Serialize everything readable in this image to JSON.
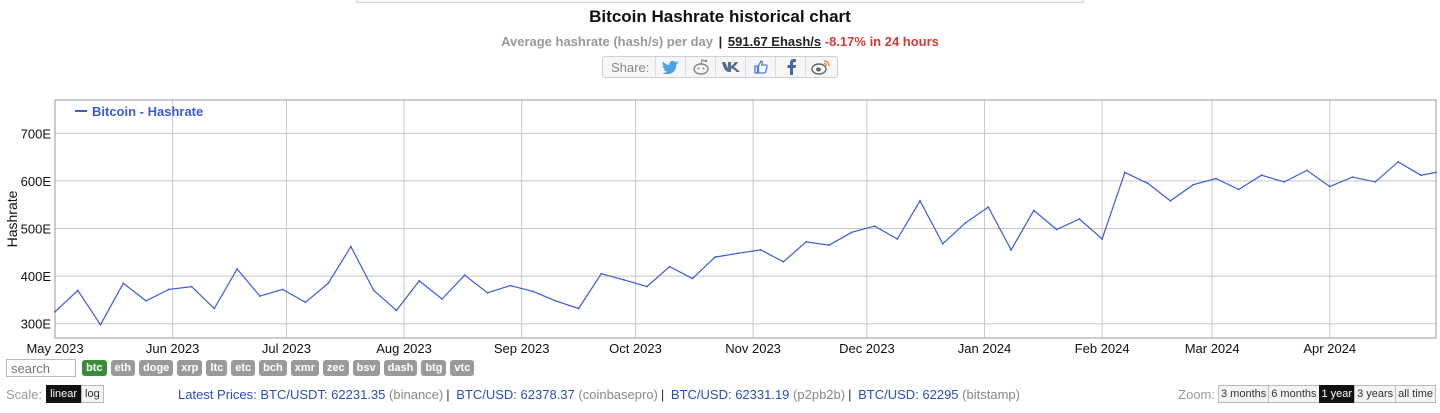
{
  "header": {
    "title": "Bitcoin Hashrate historical chart",
    "subtitle_prefix": "Average hashrate (hash/s) per day",
    "subtitle_sep": "|",
    "current_value": "591.67 Ehash/s",
    "change": "-8.17% in 24 hours"
  },
  "share": {
    "label": "Share:",
    "icons": [
      "twitter-icon",
      "reddit-icon",
      "vk-icon",
      "like-icon",
      "facebook-icon",
      "weibo-icon"
    ]
  },
  "chart_data": {
    "type": "line",
    "ylabel": "Hashrate",
    "ylim": [
      270,
      770
    ],
    "yticks": [
      300,
      400,
      500,
      600,
      700
    ],
    "ytick_labels": [
      "300E",
      "400E",
      "500E",
      "600E",
      "700E"
    ],
    "grid": true,
    "legend_position": "top-left",
    "x_start": "2023-05-01",
    "x_end": "2024-04-29",
    "x_tick_dates": [
      "2023-05-01",
      "2023-06-01",
      "2023-07-01",
      "2023-08-01",
      "2023-09-01",
      "2023-10-01",
      "2023-11-01",
      "2023-12-01",
      "2024-01-01",
      "2024-02-01",
      "2024-03-01",
      "2024-04-01"
    ],
    "x_tick_labels": [
      "May 2023",
      "Jun 2023",
      "Jul 2023",
      "Aug 2023",
      "Sep 2023",
      "Oct 2023",
      "Nov 2023",
      "Dec 2023",
      "Jan 2024",
      "Feb 2024",
      "Mar 2024",
      "Apr 2024"
    ],
    "series": [
      {
        "name": "Bitcoin - Hashrate",
        "color": "#3a5bd9",
        "x": [
          "2023-05-01",
          "2023-05-07",
          "2023-05-13",
          "2023-05-19",
          "2023-05-25",
          "2023-05-31",
          "2023-06-06",
          "2023-06-12",
          "2023-06-18",
          "2023-06-24",
          "2023-06-30",
          "2023-07-06",
          "2023-07-12",
          "2023-07-18",
          "2023-07-24",
          "2023-07-30",
          "2023-08-05",
          "2023-08-11",
          "2023-08-17",
          "2023-08-23",
          "2023-08-29",
          "2023-09-04",
          "2023-09-10",
          "2023-09-16",
          "2023-09-22",
          "2023-09-28",
          "2023-10-04",
          "2023-10-10",
          "2023-10-16",
          "2023-10-22",
          "2023-10-28",
          "2023-11-03",
          "2023-11-09",
          "2023-11-15",
          "2023-11-21",
          "2023-11-27",
          "2023-12-03",
          "2023-12-09",
          "2023-12-15",
          "2023-12-21",
          "2023-12-27",
          "2024-01-02",
          "2024-01-08",
          "2024-01-14",
          "2024-01-20",
          "2024-01-26",
          "2024-02-01",
          "2024-02-07",
          "2024-02-13",
          "2024-02-19",
          "2024-02-25",
          "2024-03-02",
          "2024-03-08",
          "2024-03-14",
          "2024-03-20",
          "2024-03-26",
          "2024-04-01",
          "2024-04-07",
          "2024-04-13",
          "2024-04-19",
          "2024-04-25",
          "2024-04-29"
        ],
        "values": [
          325,
          370,
          298,
          385,
          348,
          372,
          378,
          332,
          415,
          358,
          372,
          345,
          385,
          462,
          370,
          328,
          390,
          352,
          402,
          365,
          380,
          368,
          348,
          332,
          405,
          392,
          378,
          420,
          395,
          440,
          448,
          455,
          430,
          472,
          465,
          492,
          505,
          478,
          558,
          468,
          512,
          545,
          455,
          538,
          498,
          520,
          478,
          618,
          595,
          558,
          592,
          605,
          582,
          612,
          598,
          622,
          588,
          608,
          598,
          640,
          612,
          618
        ]
      }
    ]
  },
  "controls": {
    "search_placeholder": "search",
    "coins": [
      "btc",
      "eth",
      "doge",
      "xrp",
      "ltc",
      "etc",
      "bch",
      "xmr",
      "zec",
      "bsv",
      "dash",
      "btg",
      "vtc"
    ],
    "scale_label": "Scale:",
    "scale_options": [
      "linear",
      "log"
    ],
    "zoom_label": "Zoom:",
    "zoom_options": [
      "3 months",
      "6 months",
      "1 year",
      "3 years",
      "all time"
    ]
  },
  "prices": {
    "label": "Latest Prices:",
    "items": [
      {
        "pair": "BTC/USDT: 62231.35",
        "exchange": "(binance)"
      },
      {
        "pair": "BTC/USD: 62378.37",
        "exchange": "(coinbasepro)"
      },
      {
        "pair": "BTC/USD: 62331.19",
        "exchange": "(p2pb2b)"
      },
      {
        "pair": "BTC/USD: 62295",
        "exchange": "(bitstamp)"
      }
    ]
  }
}
